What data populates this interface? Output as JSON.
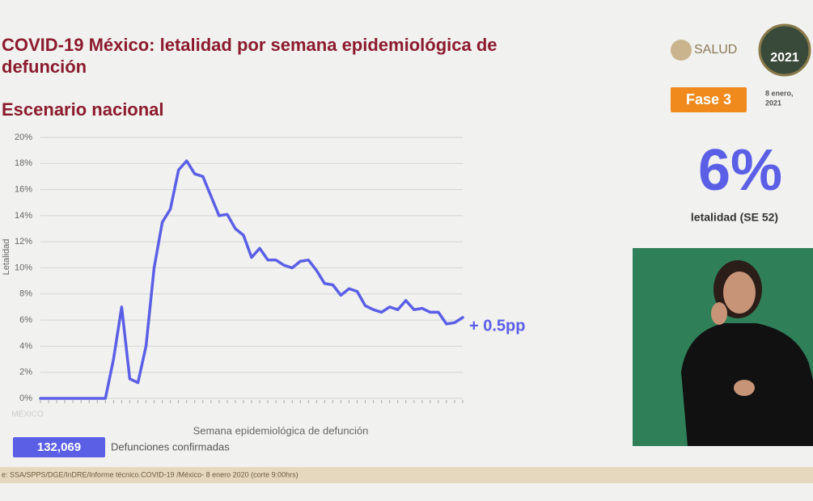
{
  "chart_data": {
    "type": "line",
    "title": [
      "COVID-19 México: letalidad por semana epidemiológica de",
      "defunción"
    ],
    "subtitle": "Escenario nacional",
    "xlabel": "Semana epidemiológica de defunción",
    "ylabel": "Letalidad",
    "annotation": "+ 0.5pp",
    "categories": [
      null,
      null,
      null,
      null,
      null,
      null,
      null,
      null,
      null,
      null,
      null,
      null,
      null,
      null,
      null,
      null,
      null,
      null,
      null,
      null,
      null,
      null,
      null,
      null,
      null,
      null,
      null,
      null,
      null,
      null,
      null,
      null,
      null,
      null,
      null,
      null,
      null,
      null,
      null,
      null,
      null,
      null,
      null,
      null,
      null,
      null,
      null,
      null,
      null,
      null,
      null,
      null,
      null
    ],
    "series": [
      {
        "name": "Letalidad",
        "color": "#5a5fe6",
        "values": [
          0,
          0,
          0,
          0,
          0,
          0,
          0,
          0,
          0,
          3,
          7.0,
          1.5,
          1.2,
          4,
          10,
          13.5,
          14.5,
          17.5,
          18.2,
          17.2,
          17.0,
          15.5,
          14.0,
          14.1,
          13.0,
          12.5,
          10.8,
          11.5,
          10.6,
          10.6,
          10.2,
          10.0,
          10.5,
          10.6,
          9.8,
          8.8,
          8.7,
          7.9,
          8.4,
          8.2,
          7.1,
          6.8,
          6.6,
          7.0,
          6.8,
          7.5,
          6.8,
          6.9,
          6.6,
          6.6,
          5.7,
          5.8,
          6.2
        ]
      }
    ],
    "ylim": [
      0,
      20
    ],
    "yticks": [
      {
        "value": 0,
        "label": "0%"
      },
      {
        "value": 2,
        "label": "2%"
      },
      {
        "value": 4,
        "label": "4%"
      },
      {
        "value": 6,
        "label": "6%"
      },
      {
        "value": 8,
        "label": "8%"
      },
      {
        "value": 10,
        "label": "10%"
      },
      {
        "value": 12,
        "label": "12%"
      },
      {
        "value": 14,
        "label": "14%"
      },
      {
        "value": 16,
        "label": "16%"
      },
      {
        "value": 18,
        "label": "18%"
      },
      {
        "value": 20,
        "label": "20%"
      }
    ],
    "grid": true
  },
  "header": {
    "logo": "SALUD",
    "badge": "2021",
    "date": [
      "8 enero,",
      "2021"
    ],
    "phase": "Fase 3"
  },
  "kpi": {
    "value": "6%",
    "label": "letalidad (SE 52)"
  },
  "footer": {
    "count": "132,069",
    "count_label": "Defunciones confirmadas",
    "source": "e: SSA/SPPS/DGE/InDRE/Informe técnico.COVID-19 /México- 8 enero 2020 (corte 9:00hrs)",
    "brand": "MÉXICO"
  }
}
